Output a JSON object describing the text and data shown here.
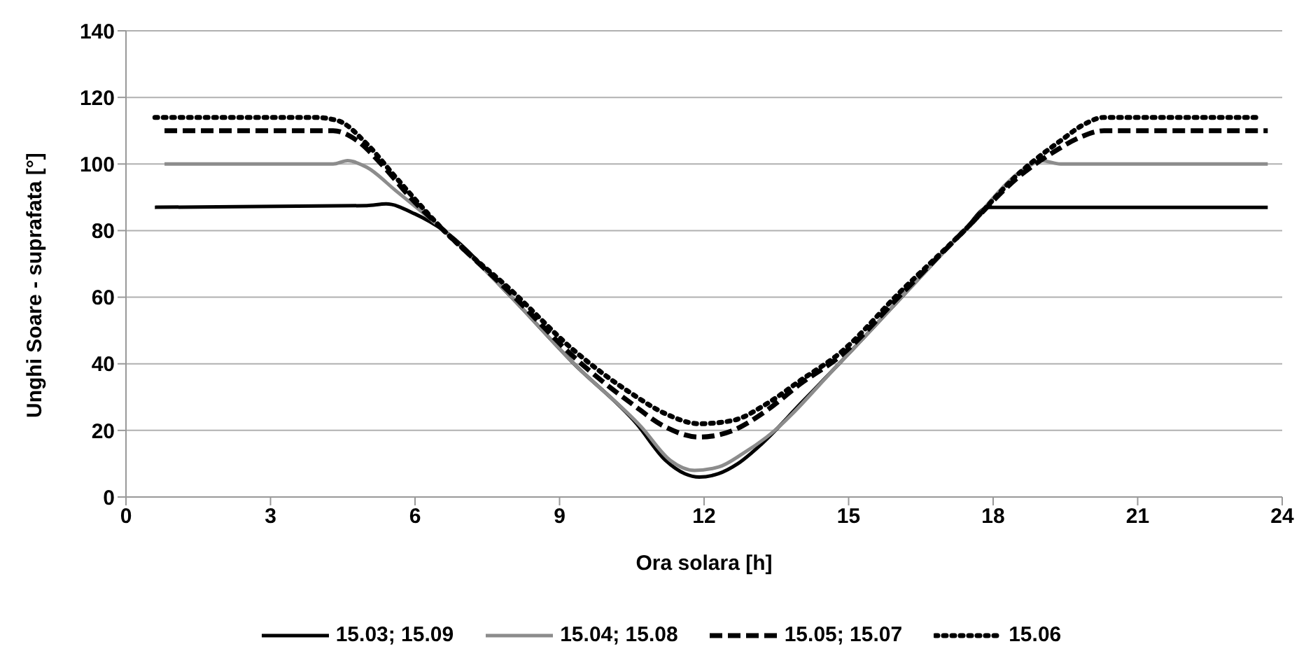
{
  "chart_data": {
    "type": "line",
    "xlabel": "Ora solara [h]",
    "ylabel": "Unghi Soare - suprafata [°]",
    "xlim": [
      0,
      24
    ],
    "xticks": [
      0,
      3,
      6,
      9,
      12,
      15,
      18,
      21,
      24
    ],
    "ylim": [
      0,
      140
    ],
    "yticks": [
      0,
      20,
      40,
      60,
      80,
      100,
      120,
      140
    ],
    "grid": "y",
    "legend": "bottom",
    "marker": "none",
    "series": [
      {
        "name": "15.03; 15.09",
        "color": "#000000",
        "line_style": "solid",
        "x": [
          0.6,
          5.0,
          5.4,
          6.0,
          6.6,
          8.0,
          9.3,
          10.6,
          11.2,
          11.6,
          11.9,
          12.3,
          12.7,
          13.2,
          14.0,
          14.8,
          16.1,
          17.4,
          17.9,
          18.6,
          23.7
        ],
        "values": [
          87,
          87.5,
          88,
          85,
          80,
          60,
          40,
          22,
          11,
          7,
          6,
          7,
          10,
          16,
          28,
          40,
          60,
          80,
          87,
          87,
          87
        ]
      },
      {
        "name": "15.04; 15.08",
        "color": "#8c8c8c",
        "line_style": "solid",
        "x": [
          0.8,
          4.3,
          4.6,
          5.0,
          5.6,
          6.6,
          8.0,
          9.3,
          10.7,
          11.3,
          11.8,
          12.3,
          12.8,
          13.3,
          14.8,
          16.1,
          17.4,
          18.7,
          19.0,
          19.4,
          23.7
        ],
        "values": [
          100,
          100,
          101,
          99,
          92,
          80,
          60,
          40,
          21,
          11,
          8,
          9,
          13,
          18,
          40,
          60,
          80,
          99,
          101,
          100,
          100
        ]
      },
      {
        "name": "15.05; 15.07",
        "color": "#000000",
        "line_style": "dashed",
        "x": [
          0.8,
          4.3,
          4.8,
          5.3,
          5.9,
          6.6,
          8.0,
          9.3,
          10.5,
          11.2,
          11.9,
          12.6,
          13.3,
          14.0,
          14.8,
          16.1,
          17.4,
          18.6,
          19.3,
          19.8,
          20.3,
          23.7
        ],
        "values": [
          110,
          110,
          107,
          100,
          90,
          80,
          61,
          42,
          28,
          21,
          18,
          20,
          26,
          34,
          42,
          61,
          80,
          97,
          104,
          108,
          110,
          110
        ]
      },
      {
        "name": "15.06",
        "color": "#000000",
        "line_style": "dotted",
        "x": [
          0.6,
          3.9,
          4.4,
          5.0,
          5.6,
          6.6,
          8.0,
          9.3,
          10.5,
          11.2,
          11.9,
          12.6,
          13.3,
          14.0,
          14.8,
          16.1,
          17.4,
          18.6,
          19.4,
          19.9,
          20.3,
          23.5
        ],
        "values": [
          114,
          114,
          113,
          106,
          96,
          80,
          62,
          44,
          31,
          25,
          22,
          23,
          28,
          35,
          43,
          62,
          80,
          98,
          107,
          112,
          114,
          114
        ]
      }
    ]
  }
}
